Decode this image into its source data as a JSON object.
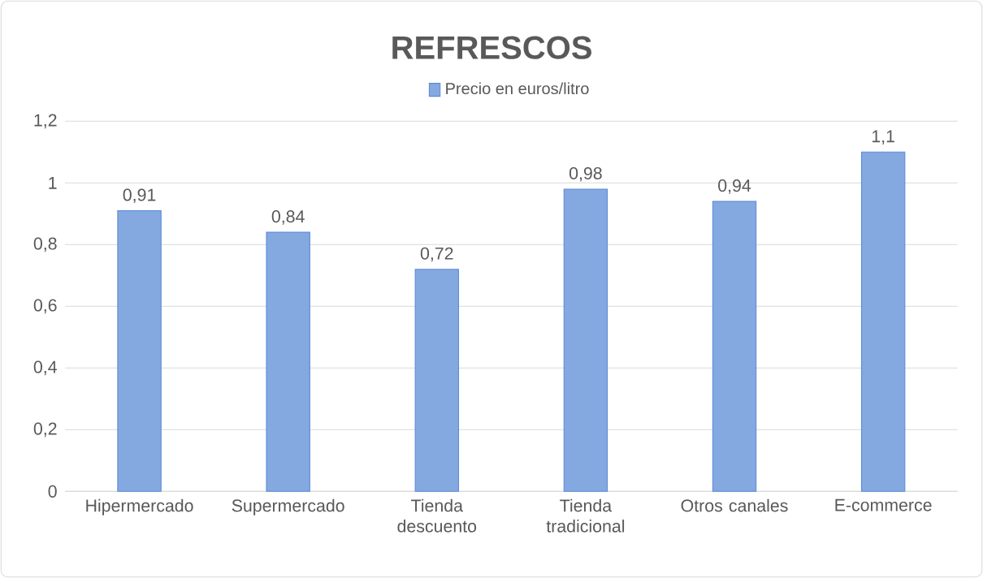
{
  "chart_data": {
    "type": "bar",
    "title": "REFRESCOS",
    "categories": [
      "Hipermercado",
      "Supermercado",
      "Tienda descuento",
      "Tienda tradicional",
      "Otros canales",
      "E-commerce"
    ],
    "series": [
      {
        "name": "Precio en euros/litro",
        "color": "#5b8bd6",
        "values": [
          0.91,
          0.84,
          0.72,
          0.98,
          0.94,
          1.1
        ],
        "value_labels": [
          "0,91",
          "0,84",
          "0,72",
          "0,98",
          "0,94",
          "1,1"
        ]
      }
    ],
    "ylim": [
      0,
      1.2
    ],
    "yticks": [
      0,
      {
        "value": 0.2,
        "label": "0,2"
      },
      {
        "value": 0.4,
        "label": "0,4"
      },
      {
        "value": 0.6,
        "label": "0,6"
      },
      {
        "value": 0.8,
        "label": "0,8"
      },
      1,
      {
        "value": 1.2,
        "label": "1,2"
      }
    ],
    "grid": "y",
    "legend": "top"
  }
}
